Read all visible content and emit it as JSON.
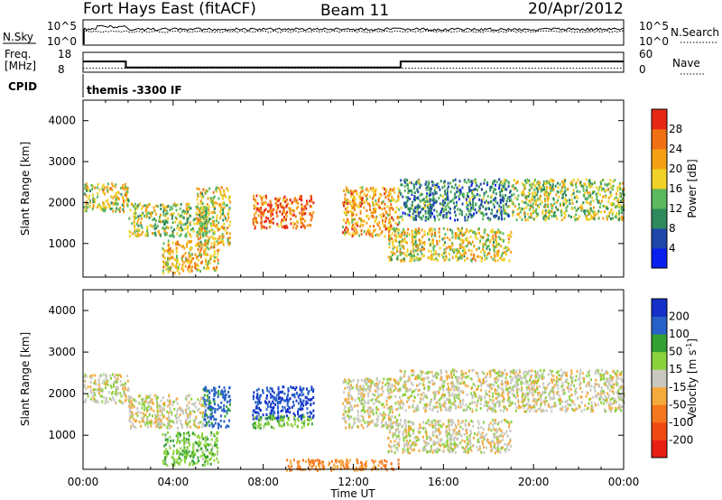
{
  "header": {
    "site": "Fort Hays East (fitACF)",
    "beam": "Beam 11",
    "date": "20/Apr/2012"
  },
  "strip": {
    "nsky_label": "N.Sky",
    "nsky_ticks": [
      "10^5",
      "10^0"
    ],
    "nsearch_label": "N.Search",
    "nsearch_ticks": [
      "10^5",
      "10^0"
    ],
    "freq_label_1": "Freq.",
    "freq_label_2": "[MHz]",
    "freq_ticks": [
      "18",
      "8"
    ],
    "nave_label": "Nave",
    "nave_ticks": [
      "60",
      "0"
    ],
    "cpid_label": "CPID",
    "cpid_text": "themis -3300 IF",
    "freq_steps": [
      [
        0,
        1.9,
        13.4
      ],
      [
        1.9,
        14.1,
        10.4
      ],
      [
        14.1,
        24,
        13.4
      ]
    ],
    "nave_level": 12
  },
  "power_panel": {
    "ylabel": "Slant Range [km]",
    "yticks": [
      "1000",
      "2000",
      "3000",
      "4000"
    ],
    "colorbar_label": "Power [dB]",
    "colorbar_ticks": [
      "4",
      "8",
      "12",
      "16",
      "20",
      "24",
      "28"
    ],
    "colors": [
      "#0a1ef0",
      "#1e46a8",
      "#2e8a5c",
      "#5cb85c",
      "#f0d228",
      "#f5a014",
      "#f07014",
      "#e62814"
    ]
  },
  "velocity_panel": {
    "ylabel": "Slant Range [km]",
    "yticks": [
      "1000",
      "2000",
      "3000",
      "4000"
    ],
    "colorbar_label": "Velocity [m s",
    "colorbar_label_sup": "-1",
    "colorbar_label_end": "]",
    "colorbar_ticks": [
      "-200",
      "-100",
      "-50",
      "-15",
      "15",
      "50",
      "100",
      "200"
    ],
    "colors": [
      "#e81e14",
      "#f04a14",
      "#f5781e",
      "#f5aa3c",
      "#c8c8c0",
      "#8cd23c",
      "#32a032",
      "#2862c8",
      "#1430c8"
    ]
  },
  "time_axis": {
    "ticks": [
      "00:00",
      "04:00",
      "08:00",
      "12:00",
      "16:00",
      "20:00",
      "00:00"
    ],
    "label": "Time UT"
  },
  "chart_data": [
    {
      "type": "heatmap",
      "title": "Power",
      "xlabel": "Time UT",
      "ylabel": "Slant Range [km]",
      "xlim": [
        0,
        24
      ],
      "ylim": [
        180,
        4500
      ],
      "colorbar": {
        "label": "Power [dB]",
        "range": [
          0,
          32
        ]
      },
      "echo_regions": [
        {
          "t": [
            0,
            2.0
          ],
          "range_km": [
            1800,
            2500
          ],
          "power_db": 18
        },
        {
          "t": [
            2.0,
            5.5
          ],
          "range_km": [
            1200,
            2000
          ],
          "power_db": 16
        },
        {
          "t": [
            3.5,
            6.0
          ],
          "range_km": [
            300,
            1100
          ],
          "power_db": 20
        },
        {
          "t": [
            5.0,
            6.5
          ],
          "range_km": [
            1000,
            2400
          ],
          "power_db": 18
        },
        {
          "t": [
            7.5,
            10.2
          ],
          "range_km": [
            1400,
            2200
          ],
          "power_db": 26
        },
        {
          "t": [
            11.5,
            14.0
          ],
          "range_km": [
            1200,
            2400
          ],
          "power_db": 22
        },
        {
          "t": [
            13.5,
            19.0
          ],
          "range_km": [
            600,
            1400
          ],
          "power_db": 18
        },
        {
          "t": [
            14.0,
            19.0
          ],
          "range_km": [
            1600,
            2600
          ],
          "power_db": 10
        },
        {
          "t": [
            19.0,
            24.0
          ],
          "range_km": [
            1600,
            2600
          ],
          "power_db": 16
        }
      ]
    },
    {
      "type": "heatmap",
      "title": "Velocity",
      "xlabel": "Time UT",
      "ylabel": "Slant Range [km]",
      "xlim": [
        0,
        24
      ],
      "ylim": [
        180,
        4500
      ],
      "colorbar": {
        "label": "Velocity [m s-1]",
        "range": [
          -250,
          250
        ]
      },
      "echo_regions": [
        {
          "t": [
            0,
            2.0
          ],
          "range_km": [
            1800,
            2500
          ],
          "velocity": 0
        },
        {
          "t": [
            2.0,
            5.5
          ],
          "range_km": [
            1200,
            2000
          ],
          "velocity": 0
        },
        {
          "t": [
            3.5,
            6.0
          ],
          "range_km": [
            300,
            1100
          ],
          "velocity": 40
        },
        {
          "t": [
            5.3,
            6.5
          ],
          "range_km": [
            1200,
            2200
          ],
          "velocity": 120
        },
        {
          "t": [
            7.5,
            10.2
          ],
          "range_km": [
            1400,
            2200
          ],
          "velocity": 200
        },
        {
          "t": [
            7.5,
            10.2
          ],
          "range_km": [
            1200,
            1500
          ],
          "velocity": 40
        },
        {
          "t": [
            11.5,
            14.0
          ],
          "range_km": [
            1200,
            2400
          ],
          "velocity": 0
        },
        {
          "t": [
            13.5,
            19.0
          ],
          "range_km": [
            600,
            1400
          ],
          "velocity": 0
        },
        {
          "t": [
            14.0,
            24.0
          ],
          "range_km": [
            1600,
            2600
          ],
          "velocity": 0
        },
        {
          "t": [
            9.0,
            14.0
          ],
          "range_km": [
            180,
            450
          ],
          "velocity": -60
        }
      ]
    }
  ]
}
